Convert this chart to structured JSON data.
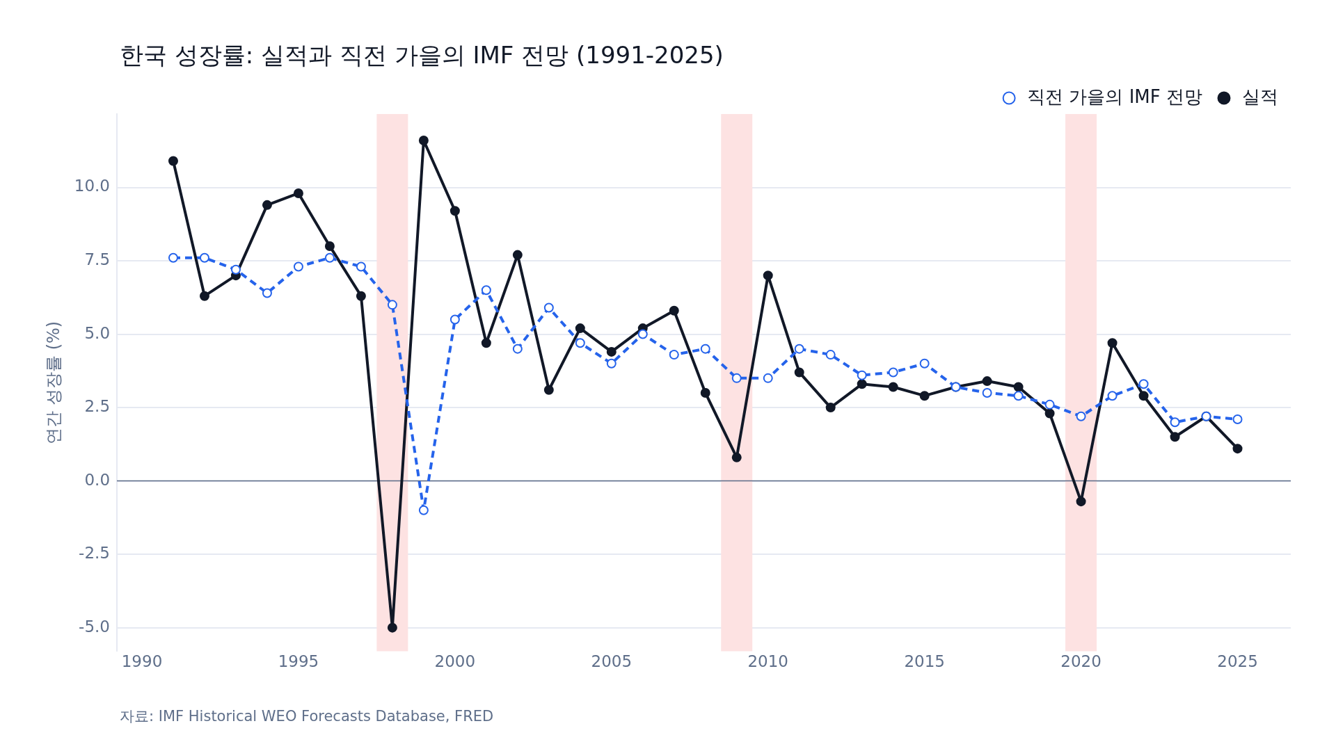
{
  "chart_data": {
    "type": "line",
    "title": "한국 성장률: 실적과 직전 가을의 IMF 전망 (1991-2025)",
    "ylabel": "연간 성장률 (%)",
    "x": [
      1991,
      1992,
      1993,
      1994,
      1995,
      1996,
      1997,
      1998,
      1999,
      2000,
      2001,
      2002,
      2003,
      2004,
      2005,
      2006,
      2007,
      2008,
      2009,
      2010,
      2011,
      2012,
      2013,
      2014,
      2015,
      2016,
      2017,
      2018,
      2019,
      2020,
      2021,
      2022,
      2023,
      2024,
      2025
    ],
    "series": [
      {
        "name": "실적",
        "color": "#111827",
        "line_style": "solid",
        "values": [
          10.9,
          6.3,
          7.0,
          9.4,
          9.8,
          8.0,
          6.3,
          -5.0,
          11.6,
          9.2,
          4.7,
          7.7,
          3.1,
          5.2,
          4.4,
          5.2,
          5.8,
          3.0,
          0.8,
          7.0,
          3.7,
          2.5,
          3.3,
          3.2,
          2.9,
          3.2,
          3.4,
          3.2,
          2.3,
          -0.7,
          4.7,
          2.9,
          1.5,
          2.2,
          1.1
        ]
      },
      {
        "name": "직전 가을의 IMF 전망",
        "color": "#2563eb",
        "line_style": "dashed",
        "values": [
          7.6,
          7.6,
          7.2,
          6.4,
          7.3,
          7.6,
          7.3,
          6.0,
          -1.0,
          5.5,
          6.5,
          4.5,
          5.9,
          4.7,
          4.0,
          5.0,
          4.3,
          4.5,
          3.5,
          3.5,
          4.5,
          4.3,
          3.6,
          3.7,
          4.0,
          3.2,
          3.0,
          2.9,
          2.6,
          2.2,
          2.9,
          3.3,
          2.0,
          2.2,
          2.1
        ]
      }
    ],
    "xlim": [
      1989.2,
      2026.7
    ],
    "ylim": [
      -5.8,
      12.5
    ],
    "xticks": [
      1990,
      1995,
      2000,
      2005,
      2010,
      2015,
      2020,
      2025
    ],
    "yticks": [
      {
        "value": -5,
        "label": "-5.0"
      },
      {
        "value": -2.5,
        "label": "-2.5"
      },
      {
        "value": 0,
        "label": "0.0"
      },
      {
        "value": 2.5,
        "label": "2.5"
      },
      {
        "value": 5,
        "label": "5.0"
      },
      {
        "value": 7.5,
        "label": "7.5"
      },
      {
        "value": 10,
        "label": "10.0"
      }
    ],
    "grid": "y",
    "legend": "top right",
    "marker": "circle",
    "bands": [
      {
        "axis": "x",
        "from": 1997.5,
        "to": 1998.5,
        "color": "#fde2e2"
      },
      {
        "axis": "x",
        "from": 2008.5,
        "to": 2009.5,
        "color": "#fde2e2"
      },
      {
        "axis": "x",
        "from": 2019.5,
        "to": 2020.5,
        "color": "#fde2e2"
      }
    ],
    "ref_lines": [
      {
        "axis": "y",
        "value": 0,
        "color": "#5b6b88"
      }
    ],
    "annotations": [
      "자료: IMF Historical WEO Forecasts Database, FRED"
    ]
  }
}
